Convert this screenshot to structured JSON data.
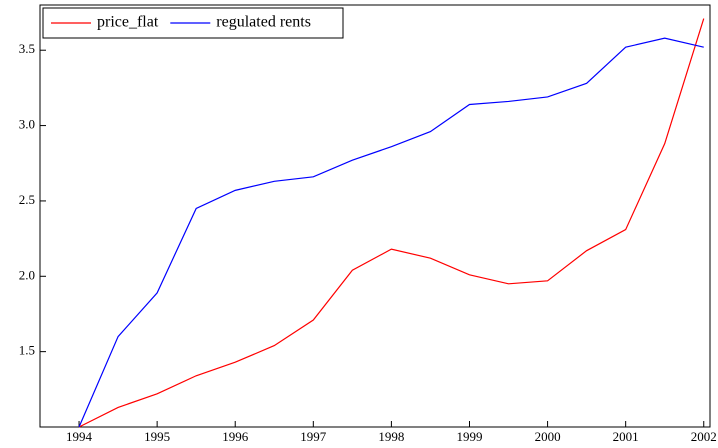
{
  "chart_data": {
    "type": "line",
    "x": [
      1994,
      1994.5,
      1995,
      1995.5,
      1996,
      1996.5,
      1997,
      1997.5,
      1998,
      1998.5,
      1999,
      1999.5,
      2000,
      2000.5,
      2001,
      2001.5,
      2002
    ],
    "series": [
      {
        "name": "price_flat",
        "color": "#ff0000",
        "values": [
          1.0,
          1.13,
          1.22,
          1.34,
          1.43,
          1.54,
          1.71,
          2.04,
          2.18,
          2.12,
          2.01,
          1.95,
          1.97,
          2.17,
          2.31,
          2.88,
          3.71
        ]
      },
      {
        "name": "regulated rents",
        "color": "#0000ff",
        "values": [
          1.0,
          1.6,
          1.89,
          2.45,
          2.57,
          2.63,
          2.66,
          2.77,
          2.86,
          2.96,
          3.14,
          3.16,
          3.19,
          3.28,
          3.52,
          3.58,
          3.52
        ]
      }
    ],
    "xlim": [
      1993.5,
      2002.08
    ],
    "xticks": [
      1994,
      1995,
      1996,
      1997,
      1998,
      1999,
      2000,
      2001,
      2002
    ],
    "ylim": [
      1.0,
      3.8
    ],
    "yticks": [
      1.5,
      {
        "value": 2,
        "label": "2.0"
      },
      2.5,
      {
        "value": 3,
        "label": "3.0"
      },
      3.5
    ],
    "legend": "upper-left"
  }
}
